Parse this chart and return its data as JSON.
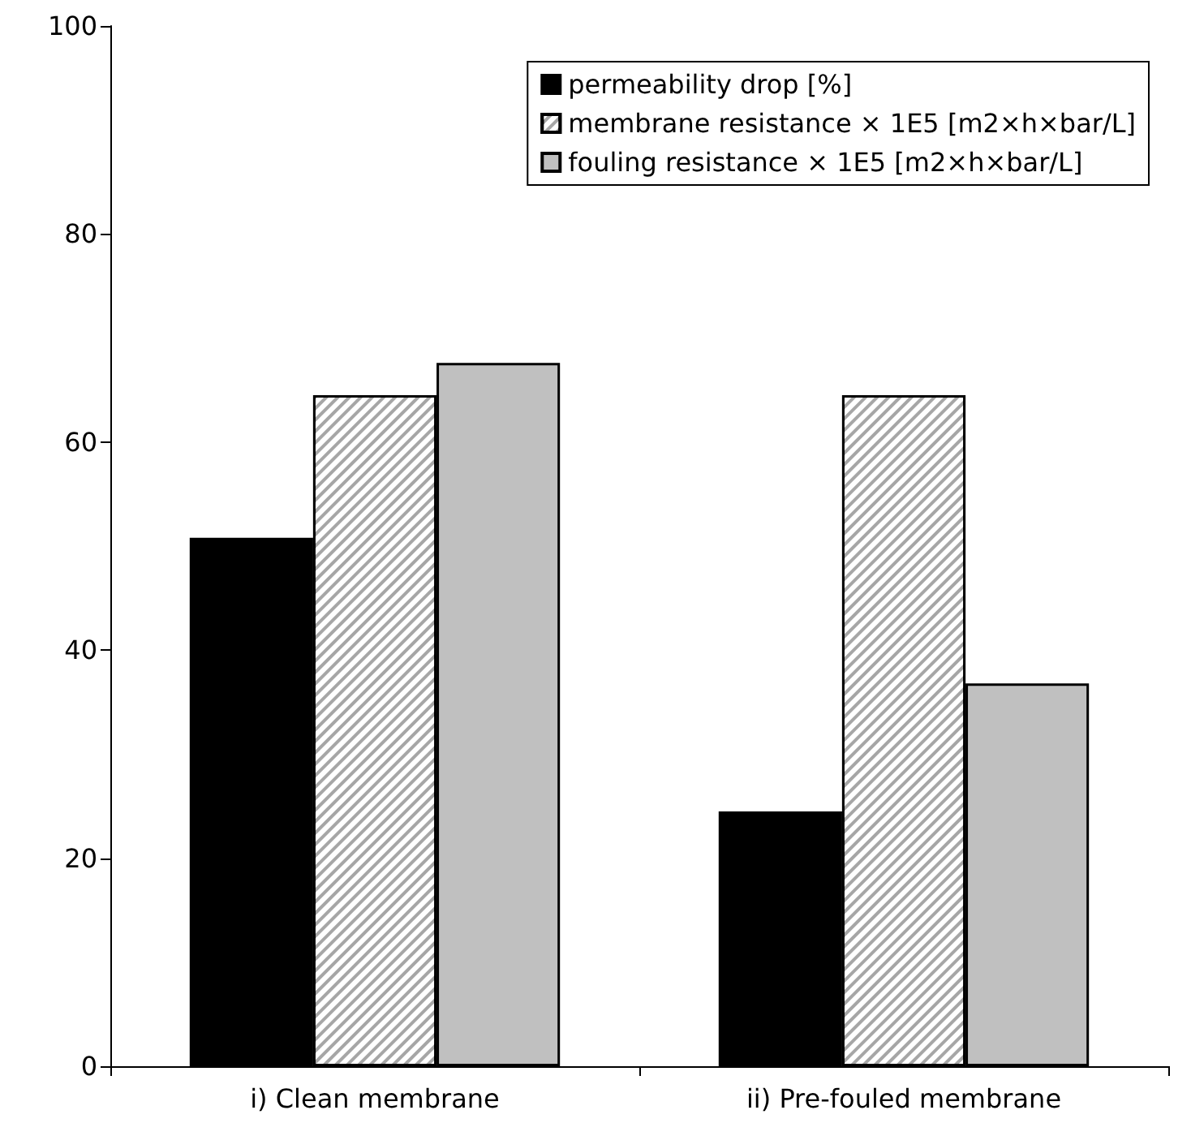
{
  "chart_data": {
    "type": "bar",
    "categories": [
      "i) Clean membrane",
      "ii) Pre-fouled membrane"
    ],
    "series": [
      {
        "name": "permeability drop [%]",
        "color": "#000000",
        "values": [
          50.8,
          24.5
        ]
      },
      {
        "name": "membrane resistance × 1E5 [m2×h×bar/L]",
        "color": "#a6a6a6",
        "values": [
          64.5,
          64.5
        ]
      },
      {
        "name": "fouling resistance × 1E5 [m2×h×bar/L]",
        "color": "#c0c0c0",
        "values": [
          67.6,
          36.8
        ]
      }
    ],
    "ylim": [
      0,
      100
    ],
    "yticks": [
      0,
      20,
      40,
      60,
      80,
      100
    ],
    "grid": false,
    "legend": "top right"
  }
}
